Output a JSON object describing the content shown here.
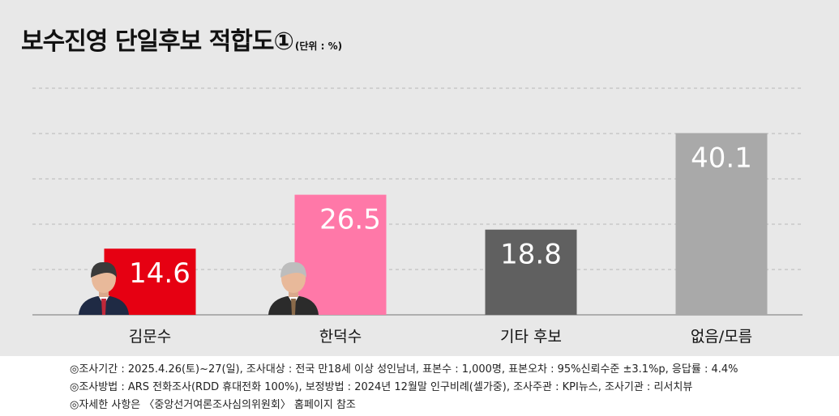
{
  "title": "보수진영 단일후보 적합도①",
  "unit": "(단위 : %)",
  "chart_data": {
    "type": "bar",
    "title": "보수진영 단일후보 적합도①",
    "unit": "(단위 : %)",
    "categories": [
      "김문수",
      "한덕수",
      "기타 후보",
      "없음/모름"
    ],
    "values": [
      14.6,
      26.5,
      18.8,
      40.1
    ],
    "colors": [
      "#e60012",
      "#ff78a8",
      "#606060",
      "#a9a9a9"
    ],
    "ylim": [
      0,
      50
    ],
    "grid": true
  },
  "notes": [
    "◎조사기간 : 2025.4.26(토)~27(일), 조사대상 : 전국 만18세 이상 성인남녀, 표본수 : 1,000명, 표본오차 : 95%신뢰수준 ±3.1%p, 응답률 : 4.4%",
    "◎조사방법 : ARS 전화조사(RDD 휴대전화 100%), 보정방법 : 2024년 12월말 인구비례(셀가중), 조사주관 : KPI뉴스, 조사기관 : 리서치뷰",
    "◎자세한 사항은 〈중앙선거여론조사심의위원회〉 홈페이지 참조"
  ]
}
